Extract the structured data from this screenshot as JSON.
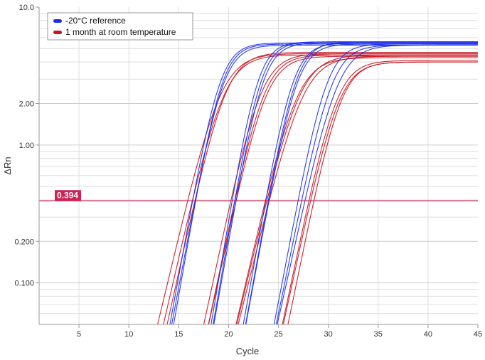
{
  "chart_data": {
    "type": "line",
    "title": "",
    "xlabel": "Cycle",
    "ylabel": "ΔRn",
    "xlim": [
      1,
      45
    ],
    "ylim": [
      0.05,
      10.0
    ],
    "yscale": "log",
    "xticks": [
      5,
      10,
      15,
      20,
      25,
      30,
      35,
      40,
      45
    ],
    "yticks": [
      {
        "value": 0.1,
        "label": "0.100"
      },
      {
        "value": 0.2,
        "label": "0.200"
      },
      {
        "value": 1.0,
        "label": "1.00"
      },
      {
        "value": 2.0,
        "label": "2.00"
      },
      {
        "value": 10.0,
        "label": "10.0"
      }
    ],
    "threshold": {
      "value": 0.394,
      "label": "0.394",
      "color": "#cc2255"
    },
    "legend": {
      "position": "top-left",
      "entries": [
        {
          "name": "-20°C reference",
          "color": "#1a2ee8"
        },
        {
          "name": "1 month at room temperature",
          "color": "#c8141e"
        }
      ]
    },
    "colors": {
      "reference": "#1a2ee8",
      "room_temperature": "#c8141e"
    },
    "series": [
      {
        "name": "-20°C reference",
        "group": "reference",
        "plateau": 5.5,
        "midpoint": 19.1,
        "slope": 0.95
      },
      {
        "name": "-20°C reference",
        "group": "reference",
        "plateau": 5.4,
        "midpoint": 19.3,
        "slope": 0.98
      },
      {
        "name": "-20°C reference",
        "group": "reference",
        "plateau": 5.3,
        "midpoint": 19.4,
        "slope": 0.92
      },
      {
        "name": "-20°C reference",
        "group": "reference",
        "plateau": 5.6,
        "midpoint": 22.9,
        "slope": 1.02
      },
      {
        "name": "-20°C reference",
        "group": "reference",
        "plateau": 5.6,
        "midpoint": 23.2,
        "slope": 1.0
      },
      {
        "name": "-20°C reference",
        "group": "reference",
        "plateau": 5.5,
        "midpoint": 23.4,
        "slope": 0.97
      },
      {
        "name": "-20°C reference",
        "group": "reference",
        "plateau": 5.5,
        "midpoint": 26.4,
        "slope": 0.96
      },
      {
        "name": "-20°C reference",
        "group": "reference",
        "plateau": 5.6,
        "midpoint": 26.7,
        "slope": 0.95
      },
      {
        "name": "-20°C reference",
        "group": "reference",
        "plateau": 5.4,
        "midpoint": 26.8,
        "slope": 0.93
      },
      {
        "name": "-20°C reference",
        "group": "reference",
        "plateau": 5.4,
        "midpoint": 29.8,
        "slope": 0.9
      },
      {
        "name": "-20°C reference",
        "group": "reference",
        "plateau": 5.3,
        "midpoint": 30.3,
        "slope": 0.85
      },
      {
        "name": "-20°C reference",
        "group": "reference",
        "plateau": 5.3,
        "midpoint": 30.9,
        "slope": 0.78
      },
      {
        "name": "1 month at room temperature",
        "group": "room_temperature",
        "plateau": 4.6,
        "midpoint": 19.2,
        "slope": 0.72
      },
      {
        "name": "1 month at room temperature",
        "group": "room_temperature",
        "plateau": 4.5,
        "midpoint": 19.5,
        "slope": 0.75
      },
      {
        "name": "1 month at room temperature",
        "group": "room_temperature",
        "plateau": 4.7,
        "midpoint": 19.7,
        "slope": 0.78
      },
      {
        "name": "1 month at room temperature",
        "group": "room_temperature",
        "plateau": 4.6,
        "midpoint": 23.2,
        "slope": 0.8
      },
      {
        "name": "1 month at room temperature",
        "group": "room_temperature",
        "plateau": 4.5,
        "midpoint": 23.5,
        "slope": 0.82
      },
      {
        "name": "1 month at room temperature",
        "group": "room_temperature",
        "plateau": 4.4,
        "midpoint": 23.7,
        "slope": 0.79
      },
      {
        "name": "1 month at room temperature",
        "group": "room_temperature",
        "plateau": 4.3,
        "midpoint": 26.8,
        "slope": 0.74
      },
      {
        "name": "1 month at room temperature",
        "group": "room_temperature",
        "plateau": 4.5,
        "midpoint": 27.1,
        "slope": 0.72
      },
      {
        "name": "1 month at room temperature",
        "group": "room_temperature",
        "plateau": 4.4,
        "midpoint": 27.4,
        "slope": 0.7
      },
      {
        "name": "1 month at room temperature",
        "group": "room_temperature",
        "plateau": 4.1,
        "midpoint": 30.8,
        "slope": 0.82
      },
      {
        "name": "1 month at room temperature",
        "group": "room_temperature",
        "plateau": 4.0,
        "midpoint": 31.0,
        "slope": 0.8
      },
      {
        "name": "1 month at room temperature",
        "group": "room_temperature",
        "plateau": 4.0,
        "midpoint": 31.2,
        "slope": 0.84
      }
    ]
  }
}
